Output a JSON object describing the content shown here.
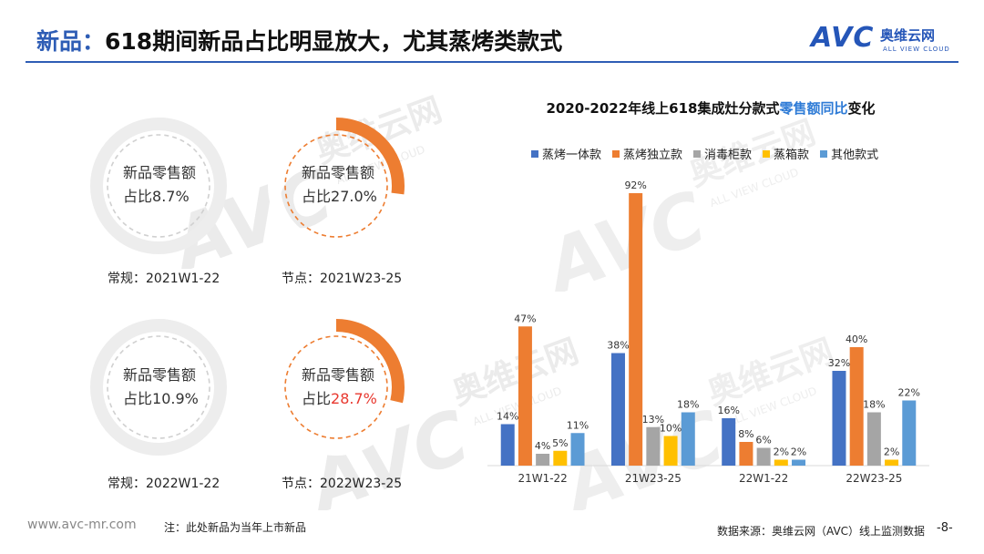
{
  "header": {
    "title_prefix": "新品：",
    "title_main": "618期间新品占比明显放大，尤其蒸烤类款式"
  },
  "logo": {
    "brand": "AVC",
    "cn_name": "奥维云网",
    "en_name": "ALL VIEW CLOUD"
  },
  "watermark": {
    "brand": "AVC",
    "cn_name": "奥维云网",
    "en_name": "ALL VIEW CLOUD"
  },
  "donuts": [
    {
      "line1": "新品零售额",
      "line2_prefix": "占比",
      "value_text": "8.7%",
      "share": 0.087,
      "highlight": false,
      "caption": "常规：2021W1-22",
      "style": "regular"
    },
    {
      "line1": "新品零售额",
      "line2_prefix": "占比",
      "value_text": "27.0%",
      "share": 0.27,
      "highlight": false,
      "caption": "节点：2021W23-25",
      "style": "node"
    },
    {
      "line1": "新品零售额",
      "line2_prefix": "占比",
      "value_text": "10.9%",
      "share": 0.109,
      "highlight": false,
      "caption": "常规：2022W1-22",
      "style": "regular"
    },
    {
      "line1": "新品零售额",
      "line2_prefix": "占比",
      "value_text": "28.7%",
      "share": 0.287,
      "highlight": true,
      "caption": "节点：2022W23-25",
      "style": "node"
    }
  ],
  "colors": {
    "accent": "#2E5DB5",
    "orange": "#ED7D31",
    "highlight_red": "#E8382F",
    "grey_ring": "#EDEDED",
    "dash_grey": "#D0D0D0"
  },
  "chart_title": {
    "part1": "2020-2022年线上618集成灶分款式",
    "part2": "零售额同比",
    "part3": "变化"
  },
  "chart_data": {
    "type": "bar",
    "categories": [
      "21W1-22",
      "21W23-25",
      "22W1-22",
      "22W23-25"
    ],
    "series": [
      {
        "name": "蒸烤一体款",
        "color": "#4472C4",
        "values": [
          14,
          38,
          16,
          32
        ]
      },
      {
        "name": "蒸烤独立款",
        "color": "#ED7D31",
        "values": [
          47,
          92,
          8,
          40
        ]
      },
      {
        "name": "消毒柜款",
        "color": "#A5A5A5",
        "values": [
          4,
          13,
          6,
          18
        ]
      },
      {
        "name": "蒸箱款",
        "color": "#FFC000",
        "values": [
          5,
          10,
          2,
          2
        ]
      },
      {
        "name": "其他款式",
        "color": "#5B9BD5",
        "values": [
          11,
          18,
          2,
          22
        ]
      }
    ],
    "label_suffix": "%",
    "ylim": [
      0,
      100
    ],
    "grid": false,
    "legend": "top"
  },
  "footer": {
    "url": "www.avc-mr.com",
    "note": "注：此处新品为当年上市新品",
    "source": "数据来源：奥维云网（AVC）线上监测数据",
    "page": "-8-"
  }
}
